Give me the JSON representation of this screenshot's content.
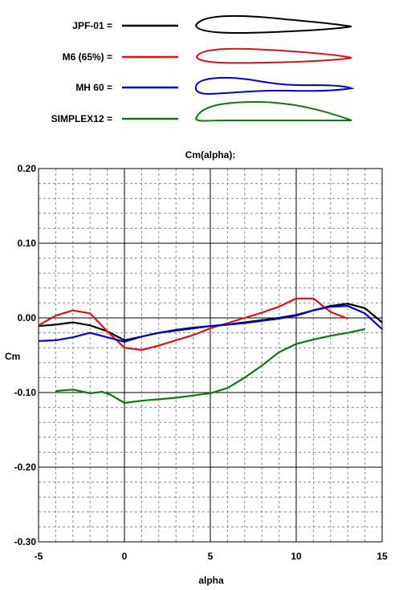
{
  "chart_data": {
    "type": "line",
    "title": "Cm(alpha):",
    "xlabel": "alpha",
    "ylabel": "Cm",
    "xlim": [
      -5,
      15
    ],
    "ylim": [
      -0.3,
      0.2
    ],
    "x_ticks": [
      "-5",
      "0",
      "5",
      "10",
      "15"
    ],
    "y_ticks": [
      "0.20",
      "0.10",
      "0.00",
      "-0.10",
      "-0.20",
      "-0.30"
    ],
    "grid": true,
    "legend_placement": "top",
    "series": [
      {
        "name": "JPF-01",
        "color": "#000000",
        "x": [
          -5,
          -4,
          -3,
          -2,
          -1,
          0,
          1,
          2,
          3,
          4,
          5,
          6,
          7,
          8,
          9,
          10,
          11,
          12,
          13,
          14,
          15
        ],
        "y": [
          -0.011,
          -0.009,
          -0.006,
          -0.01,
          -0.018,
          -0.03,
          -0.025,
          -0.02,
          -0.017,
          -0.014,
          -0.011,
          -0.009,
          -0.006,
          -0.003,
          0.0,
          0.004,
          0.01,
          0.016,
          0.019,
          0.013,
          -0.006
        ]
      },
      {
        "name": "M6 (65%)",
        "color": "#dd1111",
        "x": [
          -5,
          -4,
          -3,
          -2,
          -1,
          0,
          1,
          2,
          3,
          4,
          5,
          6,
          7,
          8,
          9,
          10,
          11,
          12,
          13
        ],
        "y": [
          -0.01,
          0.003,
          0.01,
          0.006,
          -0.018,
          -0.04,
          -0.043,
          -0.037,
          -0.03,
          -0.023,
          -0.014,
          -0.007,
          0.0,
          0.007,
          0.015,
          0.026,
          0.026,
          0.008,
          -0.001
        ]
      },
      {
        "name": "MH 60",
        "color": "#0000cc",
        "x": [
          -5,
          -4,
          -3,
          -2,
          -1,
          0,
          1,
          2,
          3,
          4,
          5,
          6,
          7,
          8,
          9,
          10,
          11,
          12,
          13,
          14,
          15
        ],
        "y": [
          -0.031,
          -0.03,
          -0.026,
          -0.02,
          -0.026,
          -0.032,
          -0.025,
          -0.02,
          -0.016,
          -0.013,
          -0.011,
          -0.009,
          -0.007,
          -0.004,
          -0.001,
          0.003,
          0.01,
          0.015,
          0.016,
          0.006,
          -0.015
        ]
      },
      {
        "name": "SIMPLEX12",
        "color": "#117711",
        "x": [
          -4,
          -3,
          -2,
          -1.3,
          -0.8,
          0,
          1,
          2,
          3,
          4,
          5,
          6,
          7,
          8,
          9,
          10,
          11,
          12,
          13,
          14
        ],
        "y": [
          -0.098,
          -0.096,
          -0.101,
          -0.099,
          -0.103,
          -0.114,
          -0.111,
          -0.109,
          -0.107,
          -0.104,
          -0.101,
          -0.094,
          -0.08,
          -0.064,
          -0.046,
          -0.035,
          -0.029,
          -0.024,
          -0.02,
          -0.015
        ]
      }
    ]
  }
}
